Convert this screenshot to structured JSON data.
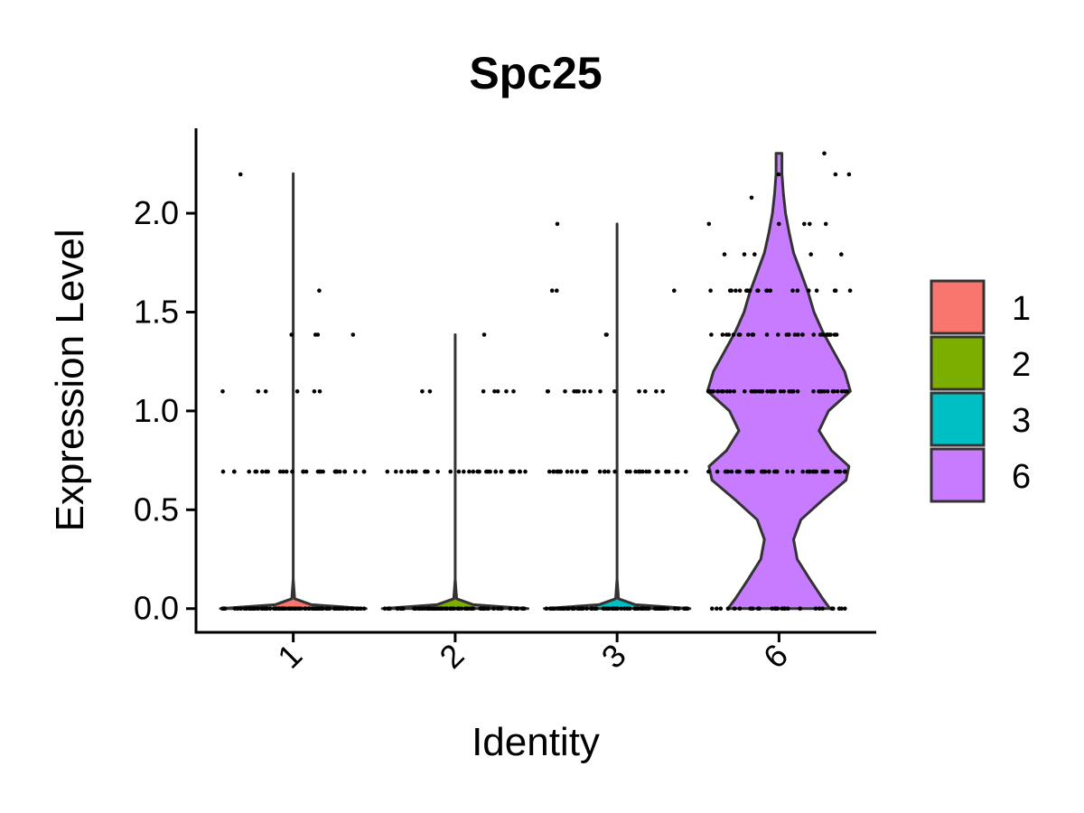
{
  "chart_data": {
    "type": "violin",
    "title": "Spc25",
    "xlabel": "Identity",
    "ylabel": "Expression Level",
    "categories": [
      "1",
      "2",
      "3",
      "6"
    ],
    "ylim": [
      -0.12,
      2.43
    ],
    "yticks": [
      "0.0",
      "0.5",
      "1.0",
      "1.5",
      "2.0"
    ],
    "ytick_values": [
      0,
      0.5,
      1.0,
      1.5,
      2.0
    ],
    "legend": {
      "position": "right",
      "entries": [
        {
          "label": "1",
          "color": "#F8766D"
        },
        {
          "label": "2",
          "color": "#7CAE00"
        },
        {
          "label": "3",
          "color": "#00BFC4"
        },
        {
          "label": "6",
          "color": "#C77CFF"
        }
      ]
    },
    "series": [
      {
        "category": "1",
        "color": "#F8766D",
        "max": 2.2,
        "violin_profile": [
          [
            0,
            1.0
          ],
          [
            0.02,
            0.25
          ],
          [
            0.05,
            0.02
          ],
          [
            0.15,
            0.0
          ],
          [
            2.2,
            0.0
          ]
        ],
        "points": [
          {
            "y": 0.0,
            "count": 90
          },
          {
            "y": 0.693,
            "count": 32
          },
          {
            "y": 1.099,
            "count": 6
          },
          {
            "y": 1.386,
            "count": 4
          },
          {
            "y": 1.609,
            "count": 1
          },
          {
            "y": 2.197,
            "count": 1
          }
        ]
      },
      {
        "category": "2",
        "color": "#7CAE00",
        "max": 1.386,
        "violin_profile": [
          [
            0,
            1.0
          ],
          [
            0.02,
            0.25
          ],
          [
            0.05,
            0.02
          ],
          [
            0.15,
            0.0
          ],
          [
            1.386,
            0.0
          ]
        ],
        "points": [
          {
            "y": 0.0,
            "count": 85
          },
          {
            "y": 0.693,
            "count": 30
          },
          {
            "y": 1.099,
            "count": 7
          },
          {
            "y": 1.386,
            "count": 1
          }
        ]
      },
      {
        "category": "3",
        "color": "#00BFC4",
        "max": 1.946,
        "violin_profile": [
          [
            0,
            1.0
          ],
          [
            0.02,
            0.25
          ],
          [
            0.05,
            0.02
          ],
          [
            0.15,
            0.0
          ],
          [
            1.946,
            0.0
          ]
        ],
        "points": [
          {
            "y": 0.0,
            "count": 85
          },
          {
            "y": 0.693,
            "count": 36
          },
          {
            "y": 1.099,
            "count": 14
          },
          {
            "y": 1.386,
            "count": 2
          },
          {
            "y": 1.609,
            "count": 3
          },
          {
            "y": 1.946,
            "count": 1
          }
        ]
      },
      {
        "category": "6",
        "color": "#C77CFF",
        "max": 2.303,
        "violin_profile": [
          [
            0,
            0.7
          ],
          [
            0.05,
            0.6
          ],
          [
            0.15,
            0.42
          ],
          [
            0.25,
            0.25
          ],
          [
            0.35,
            0.2
          ],
          [
            0.45,
            0.3
          ],
          [
            0.55,
            0.6
          ],
          [
            0.65,
            0.92
          ],
          [
            0.72,
            0.96
          ],
          [
            0.8,
            0.72
          ],
          [
            0.9,
            0.55
          ],
          [
            1.0,
            0.68
          ],
          [
            1.1,
            0.98
          ],
          [
            1.2,
            0.9
          ],
          [
            1.3,
            0.75
          ],
          [
            1.4,
            0.6
          ],
          [
            1.5,
            0.48
          ],
          [
            1.6,
            0.4
          ],
          [
            1.7,
            0.3
          ],
          [
            1.8,
            0.2
          ],
          [
            1.9,
            0.14
          ],
          [
            2.0,
            0.09
          ],
          [
            2.1,
            0.06
          ],
          [
            2.2,
            0.04
          ],
          [
            2.303,
            0.04
          ]
        ],
        "points": [
          {
            "y": 0.0,
            "count": 30
          },
          {
            "y": 0.693,
            "count": 45
          },
          {
            "y": 1.099,
            "count": 50
          },
          {
            "y": 1.386,
            "count": 30
          },
          {
            "y": 1.609,
            "count": 20
          },
          {
            "y": 1.792,
            "count": 5
          },
          {
            "y": 1.946,
            "count": 5
          },
          {
            "y": 2.079,
            "count": 1
          },
          {
            "y": 2.197,
            "count": 3
          },
          {
            "y": 2.303,
            "count": 1
          }
        ]
      }
    ]
  }
}
